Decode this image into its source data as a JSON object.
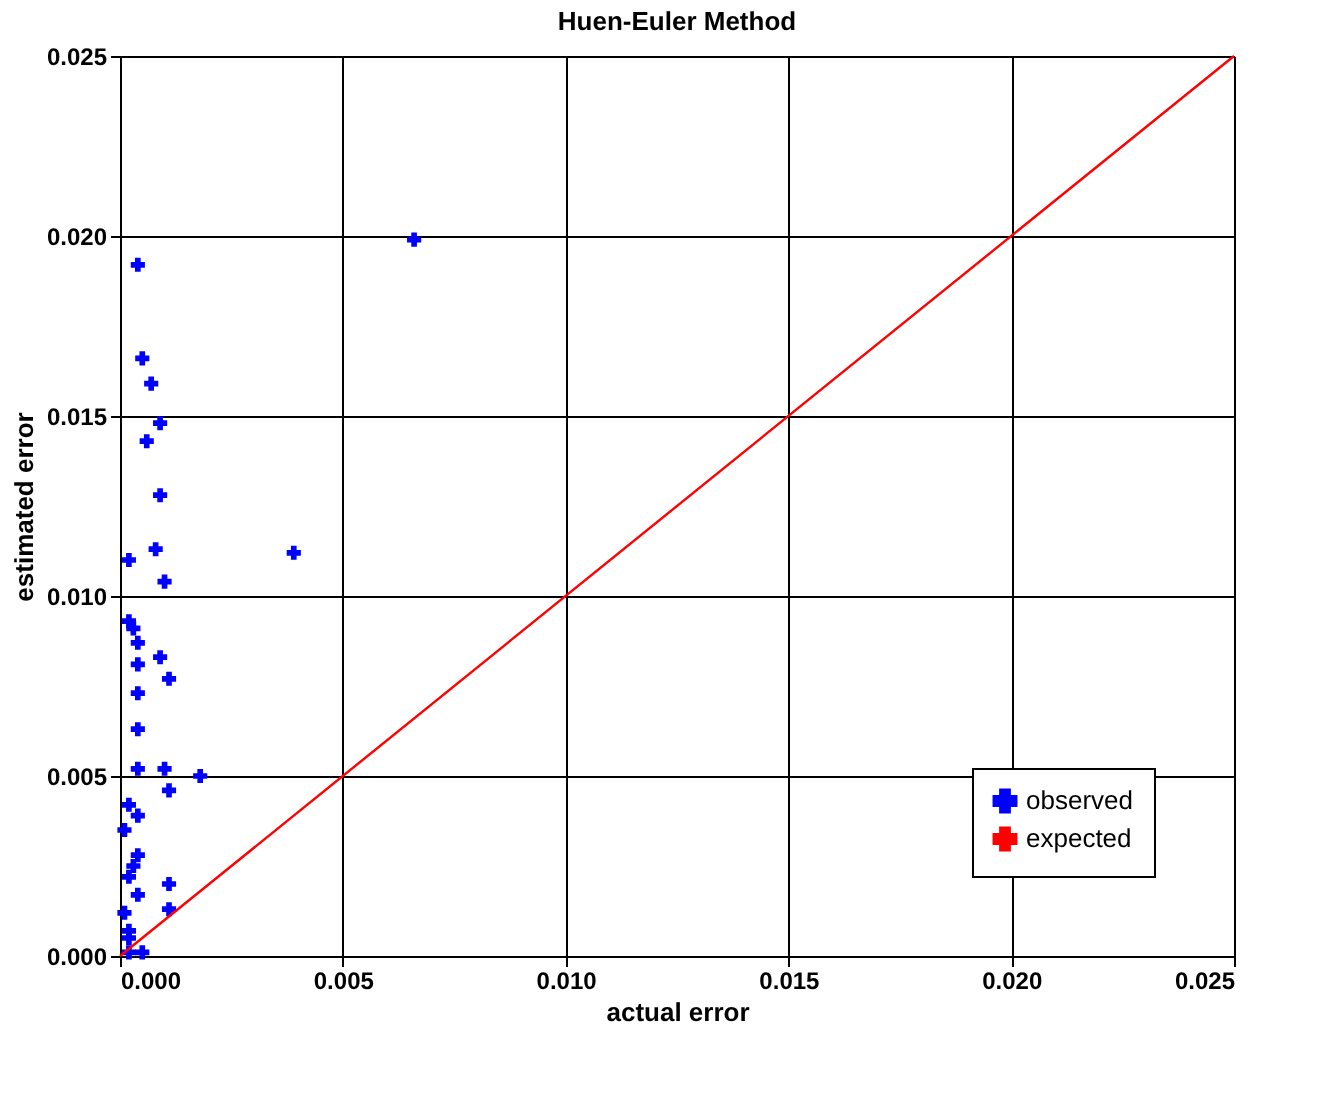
{
  "chart_data": {
    "type": "scatter",
    "title": "Huen-Euler Method",
    "xlabel": "actual error",
    "ylabel": "estimated error",
    "xlim": [
      0,
      0.025
    ],
    "ylim": [
      0,
      0.025
    ],
    "xticks": [
      {
        "value": 0,
        "label": "0.000"
      },
      {
        "value": 0.005,
        "label": "0.005"
      },
      {
        "value": 0.01,
        "label": "0.010"
      },
      {
        "value": 0.015,
        "label": "0.015"
      },
      {
        "value": 0.02,
        "label": "0.020"
      },
      {
        "value": 0.025,
        "label": "0.025"
      }
    ],
    "yticks": [
      {
        "value": 0,
        "label": "0.000"
      },
      {
        "value": 0.005,
        "label": "0.005"
      },
      {
        "value": 0.01,
        "label": "0.010"
      },
      {
        "value": 0.015,
        "label": "0.015"
      },
      {
        "value": 0.02,
        "label": "0.020"
      },
      {
        "value": 0.025,
        "label": "0.025"
      }
    ],
    "grid": true,
    "legend": "bottom right",
    "series": [
      {
        "name": "observed",
        "marker": "cross",
        "color": "#0000ff",
        "x": [
          0.0066,
          0.0004,
          0.0005,
          0.0007,
          0.0009,
          0.0006,
          0.0009,
          0.0002,
          0.0008,
          0.0039,
          0.001,
          0.0002,
          0.0003,
          0.0004,
          0.0009,
          0.0004,
          0.0011,
          0.0004,
          0.0004,
          0.0004,
          0.001,
          0.0018,
          0.0011,
          0.0002,
          0.0004,
          0.0004,
          0.0002,
          0.0011,
          0.0011,
          0.0004,
          0.0002,
          0.0002,
          0.0005,
          0.0001,
          0.0003,
          0.0001,
          0.0002
        ],
        "values": [
          0.0199,
          0.0192,
          0.0166,
          0.0159,
          0.0148,
          0.0143,
          0.0128,
          0.011,
          0.0113,
          0.0112,
          0.0104,
          0.0093,
          0.0091,
          0.0087,
          0.0083,
          0.0081,
          0.0077,
          0.0073,
          0.0063,
          0.0052,
          0.0052,
          0.005,
          0.0046,
          0.0042,
          0.0039,
          0.0028,
          0.0022,
          0.002,
          0.0013,
          0.0017,
          0.0007,
          0.0001,
          0.0001,
          0.0035,
          0.0025,
          0.0012,
          0.0005
        ]
      },
      {
        "name": "expected",
        "type": "line",
        "color": "#ff0000",
        "line_style": "solid",
        "x": [
          0,
          0.025
        ],
        "values": [
          0,
          0.025
        ]
      }
    ]
  }
}
